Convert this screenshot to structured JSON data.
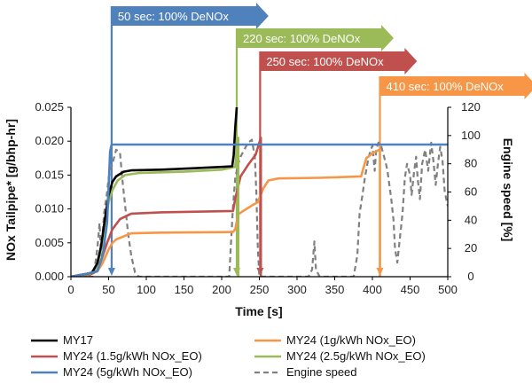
{
  "chart_data": {
    "type": "line",
    "xlabel": "Time [s]",
    "ylabel": "NOx Tailpipe* [g/bhp-hr]",
    "y2label": "Engine speed [%]",
    "xlim": [
      0,
      500
    ],
    "ylim": [
      0,
      0.025
    ],
    "y2lim": [
      0,
      120
    ],
    "xticks": [
      "0",
      "50",
      "100",
      "150",
      "200",
      "250",
      "300",
      "350",
      "400",
      "450",
      "500"
    ],
    "yticks": [
      "0.000",
      "0.005",
      "0.010",
      "0.015",
      "0.020",
      "0.025"
    ],
    "y2ticks": [
      "0",
      "20",
      "40",
      "60",
      "80",
      "100",
      "120"
    ],
    "grid": false,
    "legend_position": "bottom",
    "series": [
      {
        "name": "MY17",
        "color": "#000000",
        "style": "solid",
        "axis": "left",
        "points": [
          [
            0,
            0
          ],
          [
            20,
            0.0004
          ],
          [
            28,
            0.0006
          ],
          [
            35,
            0.002
          ],
          [
            40,
            0.0045
          ],
          [
            45,
            0.0085
          ],
          [
            50,
            0.012
          ],
          [
            55,
            0.014
          ],
          [
            60,
            0.0148
          ],
          [
            70,
            0.0155
          ],
          [
            80,
            0.0157
          ],
          [
            120,
            0.0158
          ],
          [
            160,
            0.016
          ],
          [
            200,
            0.0162
          ],
          [
            214,
            0.0163
          ],
          [
            216,
            0.018
          ],
          [
            218,
            0.022
          ],
          [
            220,
            0.025
          ]
        ]
      },
      {
        "name": "MY24 (1g/kWh NOx_EO)",
        "color": "#f79646",
        "style": "solid",
        "axis": "left",
        "points": [
          [
            0,
            0
          ],
          [
            25,
            0.0003
          ],
          [
            35,
            0.0008
          ],
          [
            42,
            0.002
          ],
          [
            50,
            0.004
          ],
          [
            55,
            0.005
          ],
          [
            60,
            0.0055
          ],
          [
            80,
            0.0064
          ],
          [
            120,
            0.0065
          ],
          [
            215,
            0.0066
          ],
          [
            218,
            0.007
          ],
          [
            222,
            0.0092
          ],
          [
            230,
            0.0098
          ],
          [
            240,
            0.0105
          ],
          [
            248,
            0.011
          ],
          [
            255,
            0.013
          ],
          [
            262,
            0.0142
          ],
          [
            275,
            0.0145
          ],
          [
            330,
            0.0146
          ],
          [
            385,
            0.0148
          ],
          [
            388,
            0.016
          ],
          [
            392,
            0.0175
          ],
          [
            400,
            0.0182
          ],
          [
            410,
            0.0188
          ],
          [
            410,
            0
          ]
        ]
      },
      {
        "name": "MY24 (1.5g/kWh NOx_EO)",
        "color": "#c0504d",
        "style": "solid",
        "axis": "left",
        "points": [
          [
            0,
            0
          ],
          [
            25,
            0.0003
          ],
          [
            35,
            0.0009
          ],
          [
            42,
            0.003
          ],
          [
            48,
            0.005
          ],
          [
            55,
            0.007
          ],
          [
            65,
            0.0085
          ],
          [
            80,
            0.0093
          ],
          [
            120,
            0.0095
          ],
          [
            215,
            0.0097
          ],
          [
            218,
            0.0115
          ],
          [
            225,
            0.0148
          ],
          [
            235,
            0.0165
          ],
          [
            245,
            0.018
          ],
          [
            250,
            0.0198
          ],
          [
            252,
            0.0205
          ],
          [
            252,
            0
          ]
        ]
      },
      {
        "name": "MY24 (2.5g/kWh NOx_EO)",
        "color": "#9bbb59",
        "style": "solid",
        "axis": "left",
        "points": [
          [
            0,
            0
          ],
          [
            25,
            0.0004
          ],
          [
            35,
            0.0015
          ],
          [
            40,
            0.004
          ],
          [
            45,
            0.008
          ],
          [
            50,
            0.011
          ],
          [
            55,
            0.0128
          ],
          [
            62,
            0.0142
          ],
          [
            72,
            0.015
          ],
          [
            90,
            0.0153
          ],
          [
            150,
            0.0155
          ],
          [
            200,
            0.0158
          ],
          [
            218,
            0.0162
          ],
          [
            220,
            0.0195
          ],
          [
            222,
            0.0205
          ],
          [
            222,
            0
          ]
        ]
      },
      {
        "name": "MY24 (5g/kWh NOx_EO)",
        "color": "#4f81bd",
        "style": "solid",
        "axis": "left",
        "points": [
          [
            0,
            0
          ],
          [
            20,
            0.0004
          ],
          [
            35,
            0.0008
          ],
          [
            42,
            0.003
          ],
          [
            48,
            0.008
          ],
          [
            52,
            0.0185
          ],
          [
            54,
            0.0195
          ],
          [
            200,
            0.0195
          ],
          [
            350,
            0.0195
          ],
          [
            500,
            0.0195
          ]
        ]
      },
      {
        "name": "Engine speed",
        "color": "#808080",
        "style": "dashed",
        "axis": "right",
        "points": [
          [
            0,
            0
          ],
          [
            30,
            0
          ],
          [
            35,
            20
          ],
          [
            38,
            38
          ],
          [
            40,
            15
          ],
          [
            42,
            30
          ],
          [
            44,
            45
          ],
          [
            48,
            60
          ],
          [
            50,
            70
          ],
          [
            55,
            80
          ],
          [
            60,
            90
          ],
          [
            65,
            88
          ],
          [
            68,
            70
          ],
          [
            72,
            50
          ],
          [
            76,
            30
          ],
          [
            80,
            15
          ],
          [
            85,
            3
          ],
          [
            90,
            0
          ],
          [
            140,
            0
          ],
          [
            200,
            0
          ],
          [
            210,
            0
          ],
          [
            212,
            20
          ],
          [
            215,
            50
          ],
          [
            218,
            70
          ],
          [
            222,
            80
          ],
          [
            225,
            85
          ],
          [
            230,
            90
          ],
          [
            235,
            95
          ],
          [
            240,
            97
          ],
          [
            244,
            85
          ],
          [
            246,
            60
          ],
          [
            248,
            20
          ],
          [
            250,
            0
          ],
          [
            315,
            0
          ],
          [
            320,
            5
          ],
          [
            323,
            25
          ],
          [
            325,
            5
          ],
          [
            330,
            0
          ],
          [
            375,
            0
          ],
          [
            380,
            15
          ],
          [
            383,
            45
          ],
          [
            386,
            55
          ],
          [
            390,
            70
          ],
          [
            395,
            85
          ],
          [
            400,
            93
          ],
          [
            403,
            75
          ],
          [
            405,
            90
          ],
          [
            408,
            95
          ],
          [
            412,
            92
          ],
          [
            418,
            80
          ],
          [
            420,
            75
          ],
          [
            425,
            55
          ],
          [
            428,
            40
          ],
          [
            430,
            20
          ],
          [
            433,
            10
          ],
          [
            436,
            25
          ],
          [
            440,
            45
          ],
          [
            443,
            70
          ],
          [
            446,
            80
          ],
          [
            450,
            72
          ],
          [
            452,
            58
          ],
          [
            455,
            73
          ],
          [
            458,
            85
          ],
          [
            460,
            70
          ],
          [
            463,
            55
          ],
          [
            466,
            80
          ],
          [
            470,
            90
          ],
          [
            474,
            75
          ],
          [
            478,
            95
          ],
          [
            481,
            82
          ],
          [
            484,
            65
          ],
          [
            487,
            80
          ],
          [
            490,
            92
          ],
          [
            493,
            82
          ],
          [
            496,
            60
          ],
          [
            500,
            50
          ]
        ]
      }
    ],
    "annotations": [
      {
        "text": "50 sec: 100% DeNOx",
        "x": 54,
        "color": "#4f81bd"
      },
      {
        "text": "220 sec: 100% DeNOx",
        "x": 220,
        "color": "#9bbb59"
      },
      {
        "text": "250 sec: 100% DeNOx",
        "x": 251,
        "color": "#c0504d"
      },
      {
        "text": "410 sec: 100% DeNOx",
        "x": 410,
        "color": "#f79646"
      }
    ]
  }
}
